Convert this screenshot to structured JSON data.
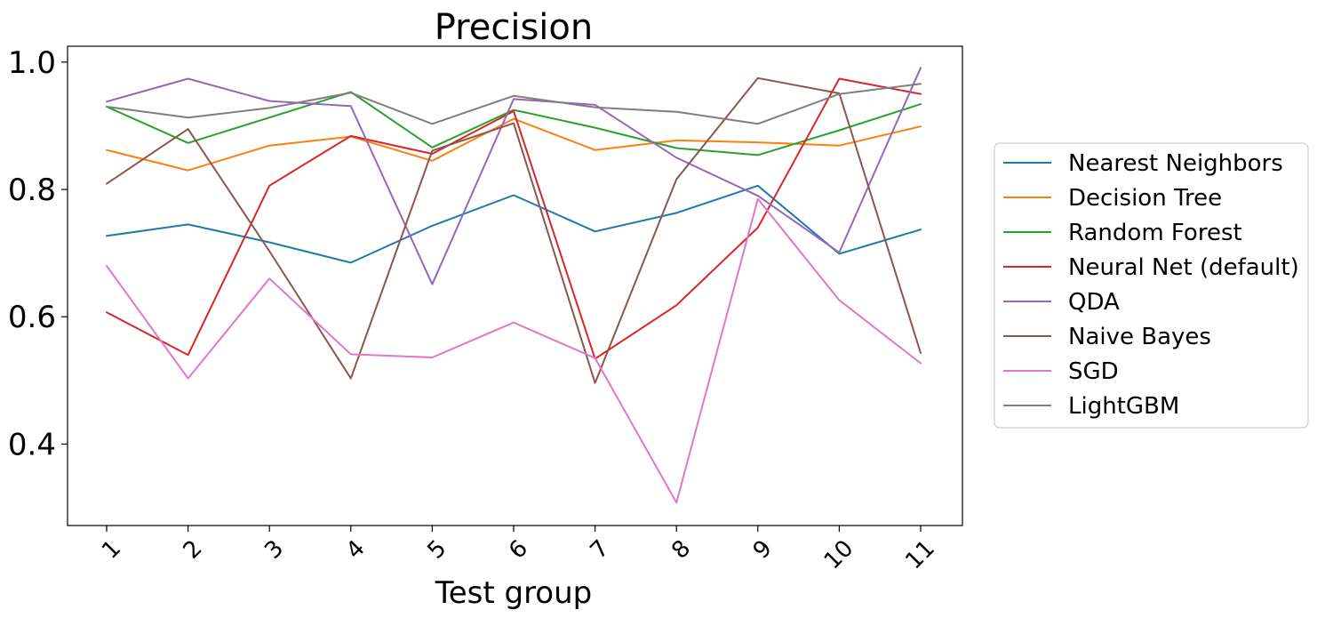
{
  "chart_data": {
    "type": "line",
    "title": "Precision",
    "xlabel": "Test group",
    "ylabel": "",
    "categories": [
      "1",
      "2",
      "3",
      "4",
      "5",
      "6",
      "7",
      "8",
      "9",
      "10",
      "11"
    ],
    "ylim": [
      0.272,
      1.025
    ],
    "yticks": [
      "0.4",
      "0.6",
      "0.8",
      "1.0"
    ],
    "ytick_values": [
      0.4,
      0.6,
      0.8,
      1.0
    ],
    "legend_position": "right-outside",
    "series": [
      {
        "name": "Nearest Neighbors",
        "color": "#1f77b4",
        "values": [
          0.727,
          0.745,
          0.717,
          0.685,
          0.743,
          0.791,
          0.734,
          0.763,
          0.806,
          0.699,
          0.737
        ]
      },
      {
        "name": "Decision Tree",
        "color": "#ff7f0e",
        "values": [
          0.862,
          0.83,
          0.869,
          0.883,
          0.845,
          0.911,
          0.862,
          0.877,
          0.874,
          0.869,
          0.899
        ]
      },
      {
        "name": "Random Forest",
        "color": "#2ca02c",
        "values": [
          0.93,
          0.873,
          0.913,
          0.953,
          0.866,
          0.925,
          0.897,
          0.865,
          0.854,
          0.893,
          0.934
        ]
      },
      {
        "name": "Neural Net (default)",
        "color": "#d62728",
        "values": [
          0.607,
          0.54,
          0.806,
          0.884,
          0.856,
          0.923,
          0.534,
          0.618,
          0.74,
          0.974,
          0.95
        ]
      },
      {
        "name": "QDA",
        "color": "#9467bd",
        "values": [
          0.938,
          0.974,
          0.939,
          0.931,
          0.651,
          0.942,
          0.933,
          0.85,
          0.79,
          0.701,
          0.991
        ]
      },
      {
        "name": "Naive Bayes",
        "color": "#8c564b",
        "values": [
          0.809,
          0.895,
          0.703,
          0.503,
          0.861,
          0.904,
          0.496,
          0.816,
          0.975,
          0.951,
          0.543
        ]
      },
      {
        "name": "SGD",
        "color": "#e377c2",
        "values": [
          0.68,
          0.503,
          0.66,
          0.541,
          0.536,
          0.591,
          0.535,
          0.308,
          0.785,
          0.626,
          0.527
        ]
      },
      {
        "name": "LightGBM",
        "color": "#7f7f7f",
        "values": [
          0.93,
          0.913,
          0.928,
          0.952,
          0.903,
          0.947,
          0.929,
          0.922,
          0.903,
          0.95,
          0.966
        ]
      }
    ]
  }
}
